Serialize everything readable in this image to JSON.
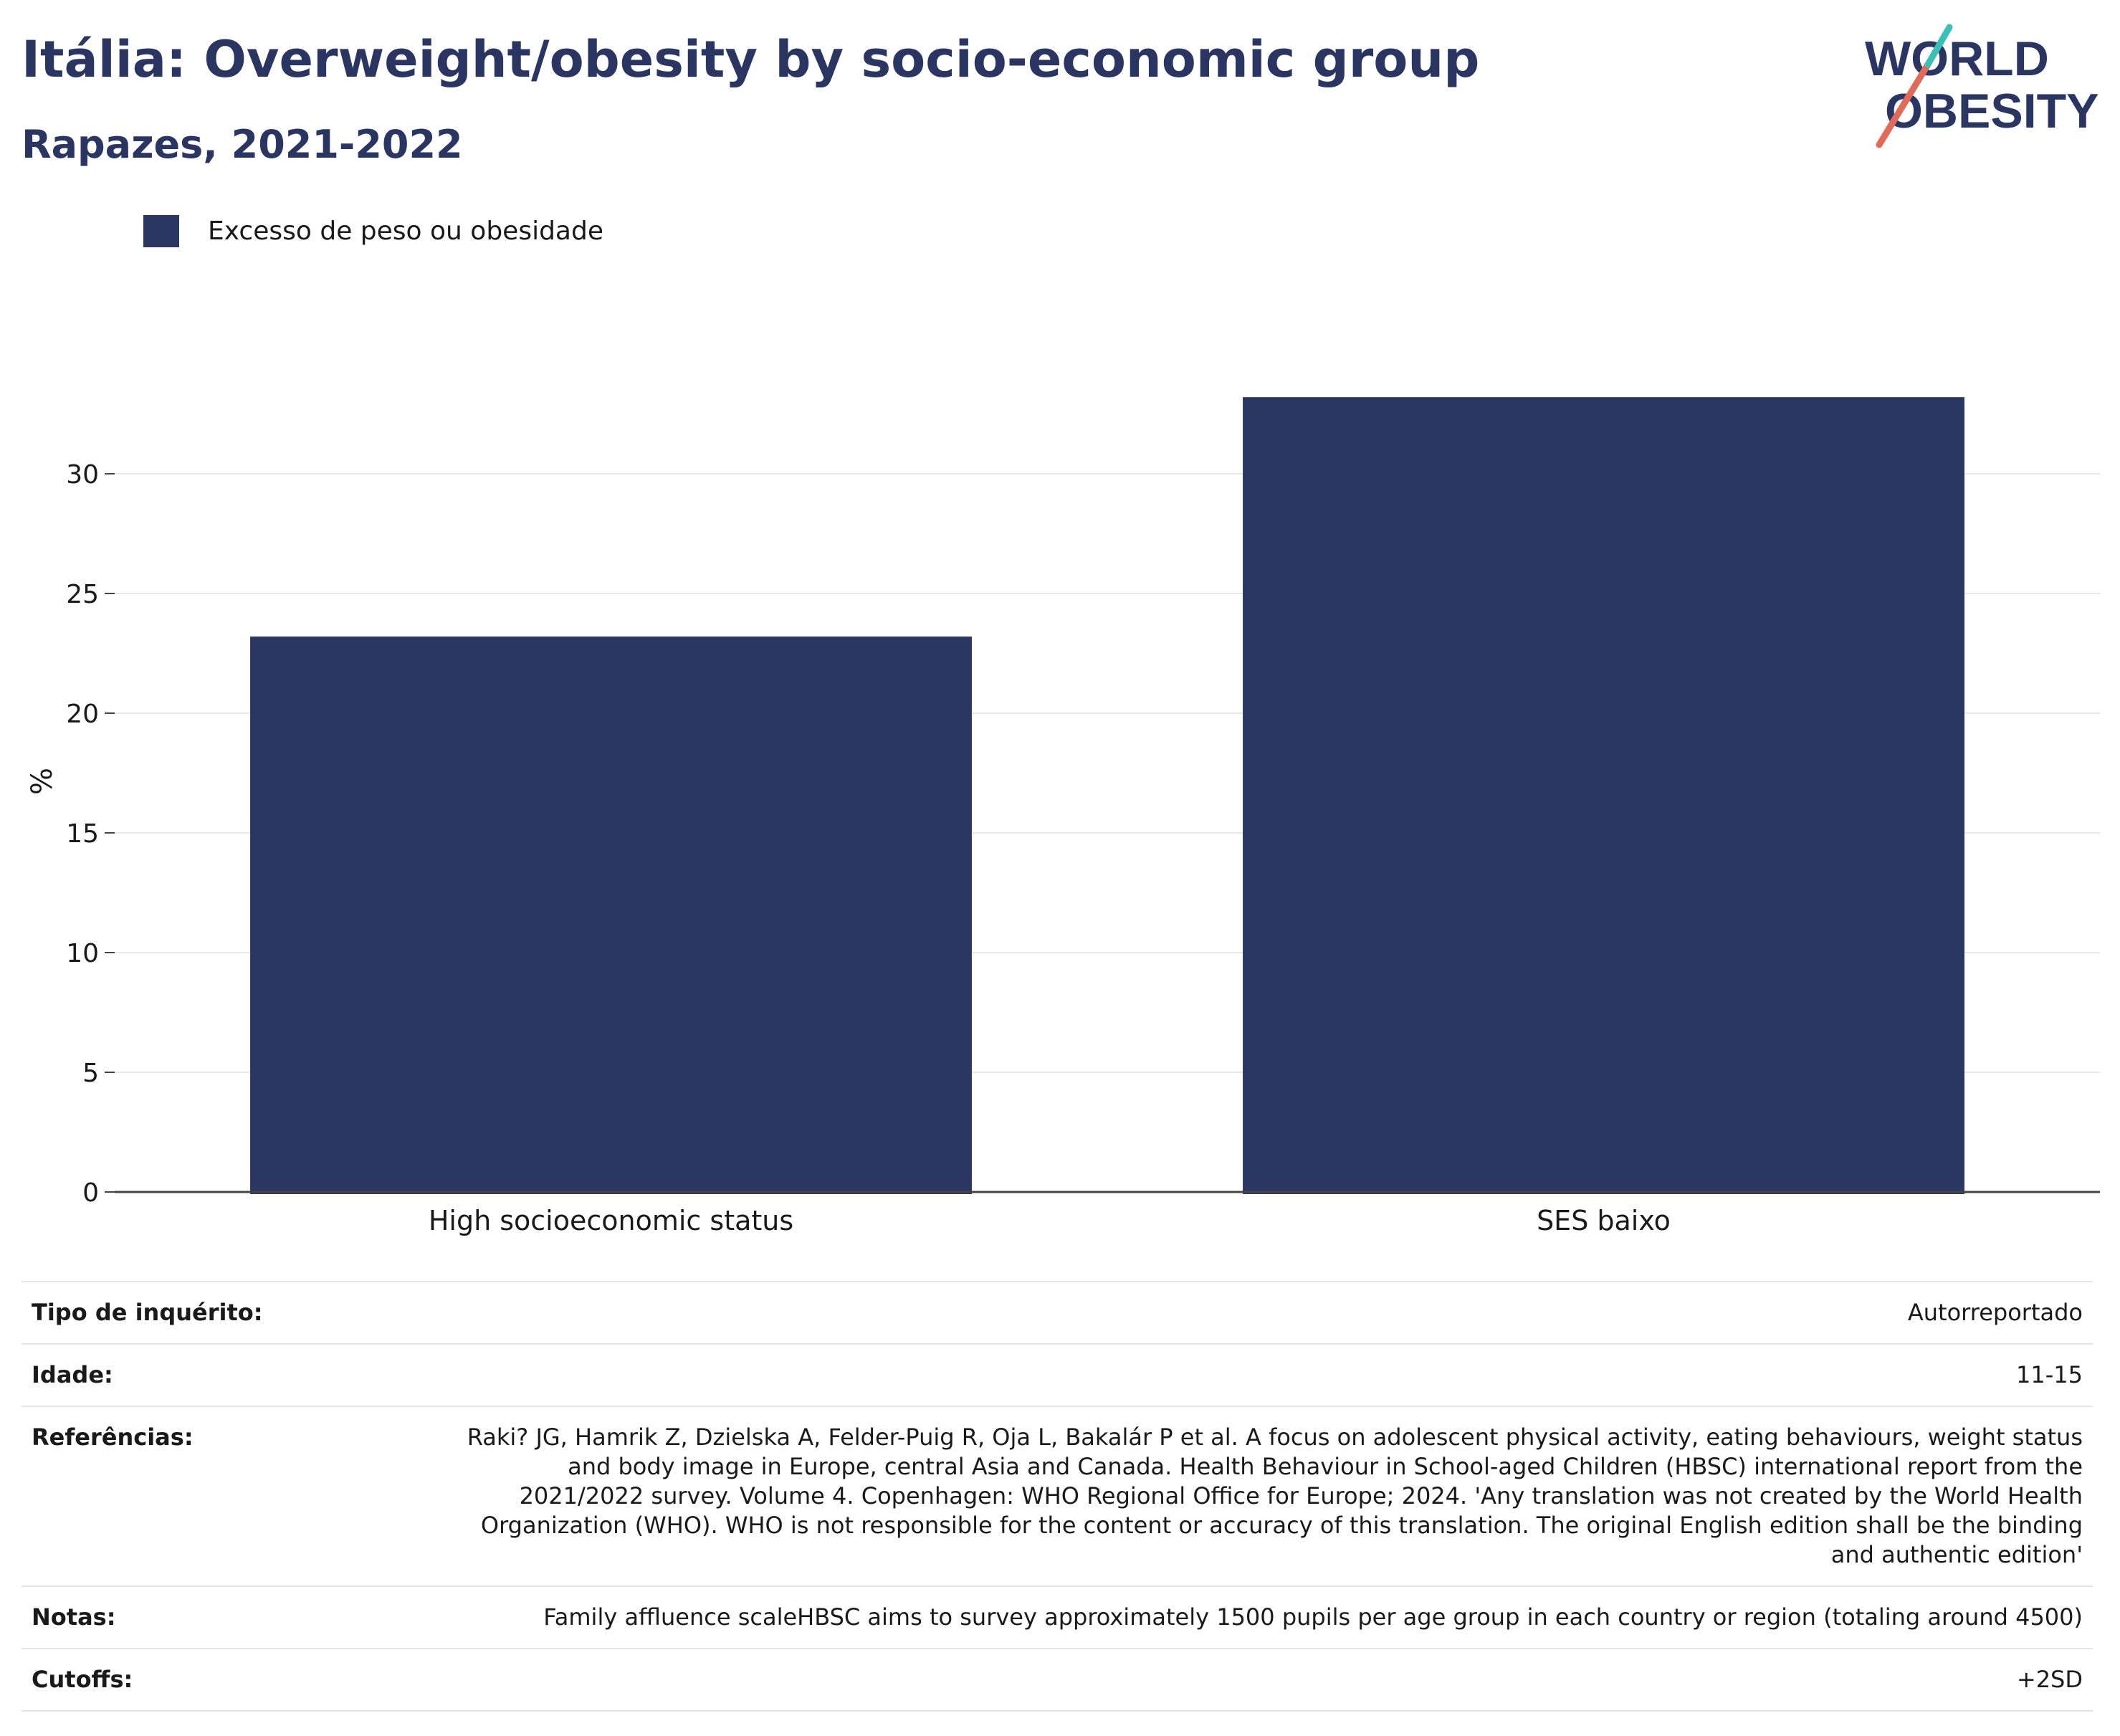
{
  "title": "Itália: Overweight/obesity by socio-economic group",
  "subtitle": "Rapazes, 2021-2022",
  "logo": {
    "line1": "WORLD",
    "line2": "OBESITY",
    "colors": {
      "text": "#2b3562",
      "slash_red": "#e06b5b",
      "slash_teal": "#3bbfb6"
    }
  },
  "colors": {
    "bar": "#2b3663",
    "title": "#2b3562",
    "grid": "#e9e9e9",
    "axis": "#444444"
  },
  "chart_data": {
    "type": "bar",
    "categories": [
      "High socioeconomic status",
      "SES baixo"
    ],
    "series": [
      {
        "name": "Excesso de peso ou obesidade",
        "values": [
          23.2,
          33.2
        ]
      }
    ],
    "ylabel": "%",
    "xlabel": "",
    "ylim": [
      0,
      35
    ],
    "yticks": [
      0,
      5,
      10,
      15,
      20,
      25,
      30
    ],
    "grid": true,
    "legend": "top-left"
  },
  "info": [
    {
      "key": "Tipo de inquérito:",
      "value": "Autorreportado"
    },
    {
      "key": "Idade:",
      "value": "11-15"
    },
    {
      "key": "Referências:",
      "value": "Raki? JG, Hamrik Z, Dzielska A, Felder-Puig R, Oja L, Bakalár P et al. A focus on adolescent physical activity, eating behaviours, weight status and body image in Europe, central Asia and Canada. Health Behaviour in School-aged Children (HBSC) international report from the 2021/2022 survey. Volume 4. Copenhagen: WHO Regional Office for Europe; 2024. 'Any translation was not created by the World Health Organization (WHO). WHO is not responsible for the content or accuracy of this translation. The original English edition shall be the binding and authentic edition'"
    },
    {
      "key": "Notas:",
      "value": "Family affluence scaleHBSC aims to survey approximately 1500 pupils per age group in each country or region (totaling around 4500)"
    },
    {
      "key": "Cutoffs:",
      "value": "+2SD"
    }
  ]
}
